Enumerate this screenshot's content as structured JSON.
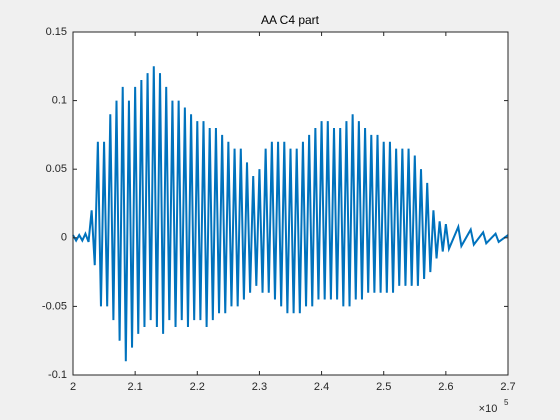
{
  "chart_data": {
    "type": "line",
    "title": "AA C4 part",
    "color": "#0072bd",
    "x_exponent_base": "×10",
    "x_exponent": "5",
    "x": [
      200000,
      200500,
      201000,
      201500,
      202000,
      202500,
      203000,
      203500,
      204000,
      204500,
      205000,
      205500,
      206000,
      206500,
      207000,
      207500,
      208000,
      208500,
      209000,
      209500,
      210000,
      210500,
      211000,
      211500,
      212000,
      212500,
      213000,
      213500,
      214000,
      214500,
      215000,
      215500,
      216000,
      216500,
      217000,
      217500,
      218000,
      218500,
      219000,
      219500,
      220000,
      220500,
      221000,
      221500,
      222000,
      222500,
      223000,
      223500,
      224000,
      224500,
      225000,
      225500,
      226000,
      226500,
      227000,
      227500,
      228000,
      228500,
      229000,
      229500,
      230000,
      230500,
      231000,
      231500,
      232000,
      232500,
      233000,
      233500,
      234000,
      234500,
      235000,
      235500,
      236000,
      236500,
      237000,
      237500,
      238000,
      238500,
      239000,
      239500,
      240000,
      240500,
      241000,
      241500,
      242000,
      242500,
      243000,
      243500,
      244000,
      244500,
      245000,
      245500,
      246000,
      246500,
      247000,
      247500,
      248000,
      248500,
      249000,
      249500,
      250000,
      250500,
      251000,
      251500,
      252000,
      252500,
      253000,
      253500,
      254000,
      254500,
      255000,
      255500,
      256000,
      256500,
      257000,
      257500,
      258000,
      258500,
      259000,
      259500,
      260000,
      260500,
      262000,
      262500,
      264000,
      264500,
      266000,
      266500,
      268000,
      268500,
      270000
    ],
    "values": [
      0.002,
      -0.002,
      0.002,
      -0.002,
      0.003,
      -0.003,
      0.02,
      -0.02,
      0.07,
      -0.05,
      0.07,
      -0.05,
      0.09,
      -0.06,
      0.1,
      -0.075,
      0.11,
      -0.09,
      0.1,
      -0.08,
      0.11,
      -0.07,
      0.115,
      -0.065,
      0.12,
      -0.06,
      0.125,
      -0.065,
      0.12,
      -0.07,
      0.11,
      -0.06,
      0.1,
      -0.065,
      0.1,
      -0.06,
      0.095,
      -0.065,
      0.09,
      -0.06,
      0.085,
      -0.06,
      0.085,
      -0.065,
      0.08,
      -0.06,
      0.08,
      -0.055,
      0.075,
      -0.055,
      0.07,
      -0.05,
      0.065,
      -0.05,
      0.065,
      -0.045,
      0.055,
      -0.04,
      0.045,
      -0.035,
      0.05,
      -0.04,
      0.065,
      -0.04,
      0.07,
      -0.045,
      0.07,
      -0.05,
      0.07,
      -0.055,
      0.065,
      -0.055,
      0.065,
      -0.055,
      0.07,
      -0.05,
      0.075,
      -0.05,
      0.08,
      -0.045,
      0.085,
      -0.045,
      0.085,
      -0.045,
      0.08,
      -0.045,
      0.08,
      -0.05,
      0.085,
      -0.05,
      0.09,
      -0.045,
      0.085,
      -0.045,
      0.08,
      -0.04,
      0.075,
      -0.04,
      0.075,
      -0.04,
      0.07,
      -0.04,
      0.07,
      -0.04,
      0.065,
      -0.035,
      0.065,
      -0.035,
      0.065,
      -0.035,
      0.06,
      -0.035,
      0.05,
      -0.03,
      0.04,
      -0.025,
      0.02,
      -0.015,
      0.012,
      -0.01,
      0.01,
      -0.008,
      0.008,
      -0.006,
      0.006,
      -0.005,
      0.004,
      -0.004,
      0.003,
      -0.003,
      0.002
    ],
    "xlim": [
      200000,
      270000
    ],
    "xticks": [
      {
        "value": 200000,
        "label": "2"
      },
      {
        "value": 210000,
        "label": "2.1"
      },
      {
        "value": 220000,
        "label": "2.2"
      },
      {
        "value": 230000,
        "label": "2.3"
      },
      {
        "value": 240000,
        "label": "2.4"
      },
      {
        "value": 250000,
        "label": "2.5"
      },
      {
        "value": 260000,
        "label": "2.6"
      },
      {
        "value": 270000,
        "label": "2.7"
      }
    ],
    "ylim": [
      -0.1,
      0.15
    ],
    "yticks": [
      -0.1,
      -0.05,
      0,
      0.05,
      0.1,
      0.15
    ]
  }
}
